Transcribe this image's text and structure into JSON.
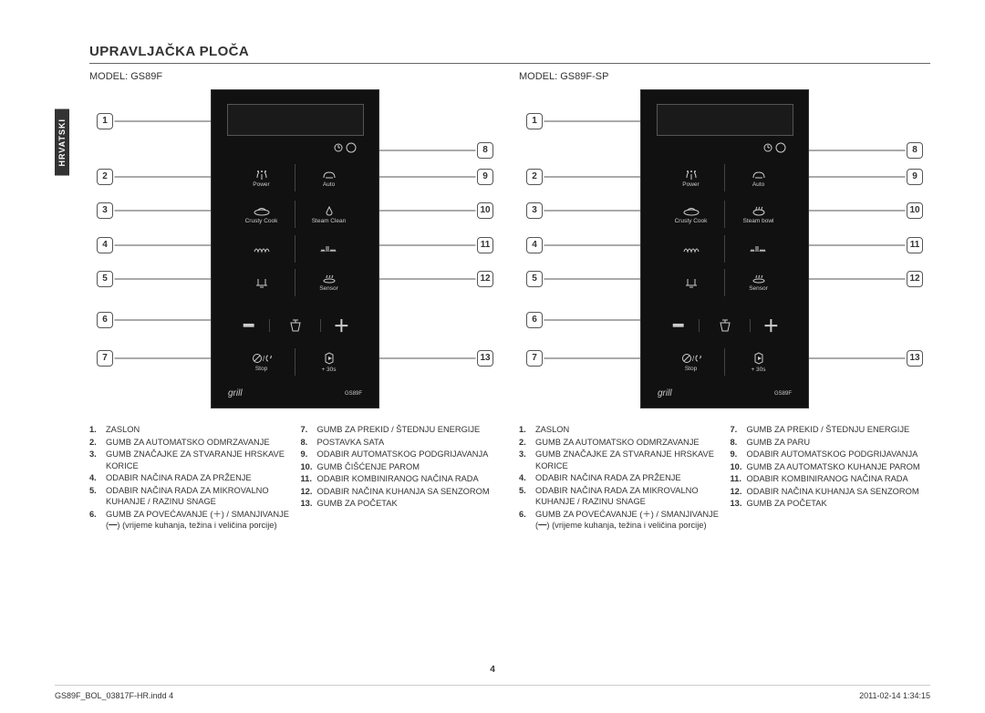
{
  "page": {
    "title": "UPRAVLJAČKA PLOČA",
    "side_tab": "HRVATSKI",
    "page_number": "4",
    "footer_left": "GS89F_BOL_03817F-HR.indd   4",
    "footer_right": "2011-02-14   1:34:15"
  },
  "left_model": {
    "label": "MODEL: GS89F",
    "grill": "grill",
    "model_tag": "GS89F",
    "buttons": {
      "power": "Power",
      "auto": "Auto",
      "crusty": "Crusty Cook",
      "steam": "Steam Clean",
      "sensor": "Sensor",
      "stop": "Stop",
      "start": "+ 30s"
    }
  },
  "right_model": {
    "label": "MODEL: GS89F-SP",
    "grill": "grill",
    "model_tag": "GS89F",
    "buttons": {
      "power": "Power",
      "auto": "Auto",
      "crusty": "Crusty Cook",
      "steam": "Steam bowl",
      "sensor": "Sensor",
      "stop": "Stop",
      "start": "+ 30s"
    }
  },
  "callouts_left": [
    "1",
    "2",
    "3",
    "4",
    "5",
    "6",
    "7"
  ],
  "callouts_right": [
    "8",
    "9",
    "10",
    "11",
    "12",
    "13"
  ],
  "legend_left": {
    "a": [
      {
        "n": "1.",
        "t": "ZASLON"
      },
      {
        "n": "2.",
        "t": "GUMB ZA AUTOMATSKO ODMRZAVANJE"
      },
      {
        "n": "3.",
        "t": "GUMB ZNAČAJKE ZA STVARANJE HRSKAVE KORICE"
      },
      {
        "n": "4.",
        "t": "ODABIR NAČINA RADA ZA PRŽENJE"
      },
      {
        "n": "5.",
        "t": "ODABIR NAČINA RADA ZA MIKROVALNO KUHANJE / RAZINU SNAGE"
      },
      {
        "n": "6.",
        "t": "GUMB ZA POVEĆAVANJE (＋) / SMANJIVANJE (━) (vrijeme kuhanja, težina i veličina porcije)"
      }
    ],
    "b": [
      {
        "n": "7.",
        "t": "GUMB ZA PREKID / ŠTEDNJU ENERGIJE"
      },
      {
        "n": "8.",
        "t": "POSTAVKA SATA"
      },
      {
        "n": "9.",
        "t": "ODABIR AUTOMATSKOG PODGRIJAVANJA"
      },
      {
        "n": "10.",
        "t": "GUMB ČIŠĆENJE PAROM"
      },
      {
        "n": "11.",
        "t": "ODABIR KOMBINIRANOG NAČINA RADA"
      },
      {
        "n": "12.",
        "t": "ODABIR NAČINA KUHANJA SA SENZOROM"
      },
      {
        "n": "13.",
        "t": "GUMB ZA POČETAK"
      }
    ]
  },
  "legend_right": {
    "a": [
      {
        "n": "1.",
        "t": "ZASLON"
      },
      {
        "n": "2.",
        "t": "GUMB ZA AUTOMATSKO ODMRZAVANJE"
      },
      {
        "n": "3.",
        "t": "GUMB ZNAČAJKE ZA STVARANJE HRSKAVE KORICE"
      },
      {
        "n": "4.",
        "t": "ODABIR NAČINA RADA ZA PRŽENJE"
      },
      {
        "n": "5.",
        "t": "ODABIR NAČINA RADA ZA MIKROVALNO KUHANJE / RAZINU SNAGE"
      },
      {
        "n": "6.",
        "t": "GUMB ZA POVEĆAVANJE (＋) / SMANJIVANJE (━) (vrijeme kuhanja, težina i veličina porcije)"
      }
    ],
    "b": [
      {
        "n": "7.",
        "t": "GUMB ZA PREKID / ŠTEDNJU ENERGIJE"
      },
      {
        "n": "8.",
        "t": "GUMB ZA PARU"
      },
      {
        "n": "9.",
        "t": "ODABIR AUTOMATSKOG PODGRIJAVANJA"
      },
      {
        "n": "10.",
        "t": "GUMB ZA AUTOMATSKO KUHANJE PAROM"
      },
      {
        "n": "11.",
        "t": "ODABIR KOMBINIRANOG NAČINA RADA"
      },
      {
        "n": "12.",
        "t": "ODABIR NAČINA KUHANJA SA SENZOROM"
      },
      {
        "n": "13.",
        "t": "GUMB ZA POČETAK"
      }
    ]
  },
  "styling": {
    "panel_bg": "#111111",
    "page_bg": "#ffffff",
    "text_color": "#333333",
    "callout_border": "#555555",
    "panel_text": "#cccccc"
  }
}
